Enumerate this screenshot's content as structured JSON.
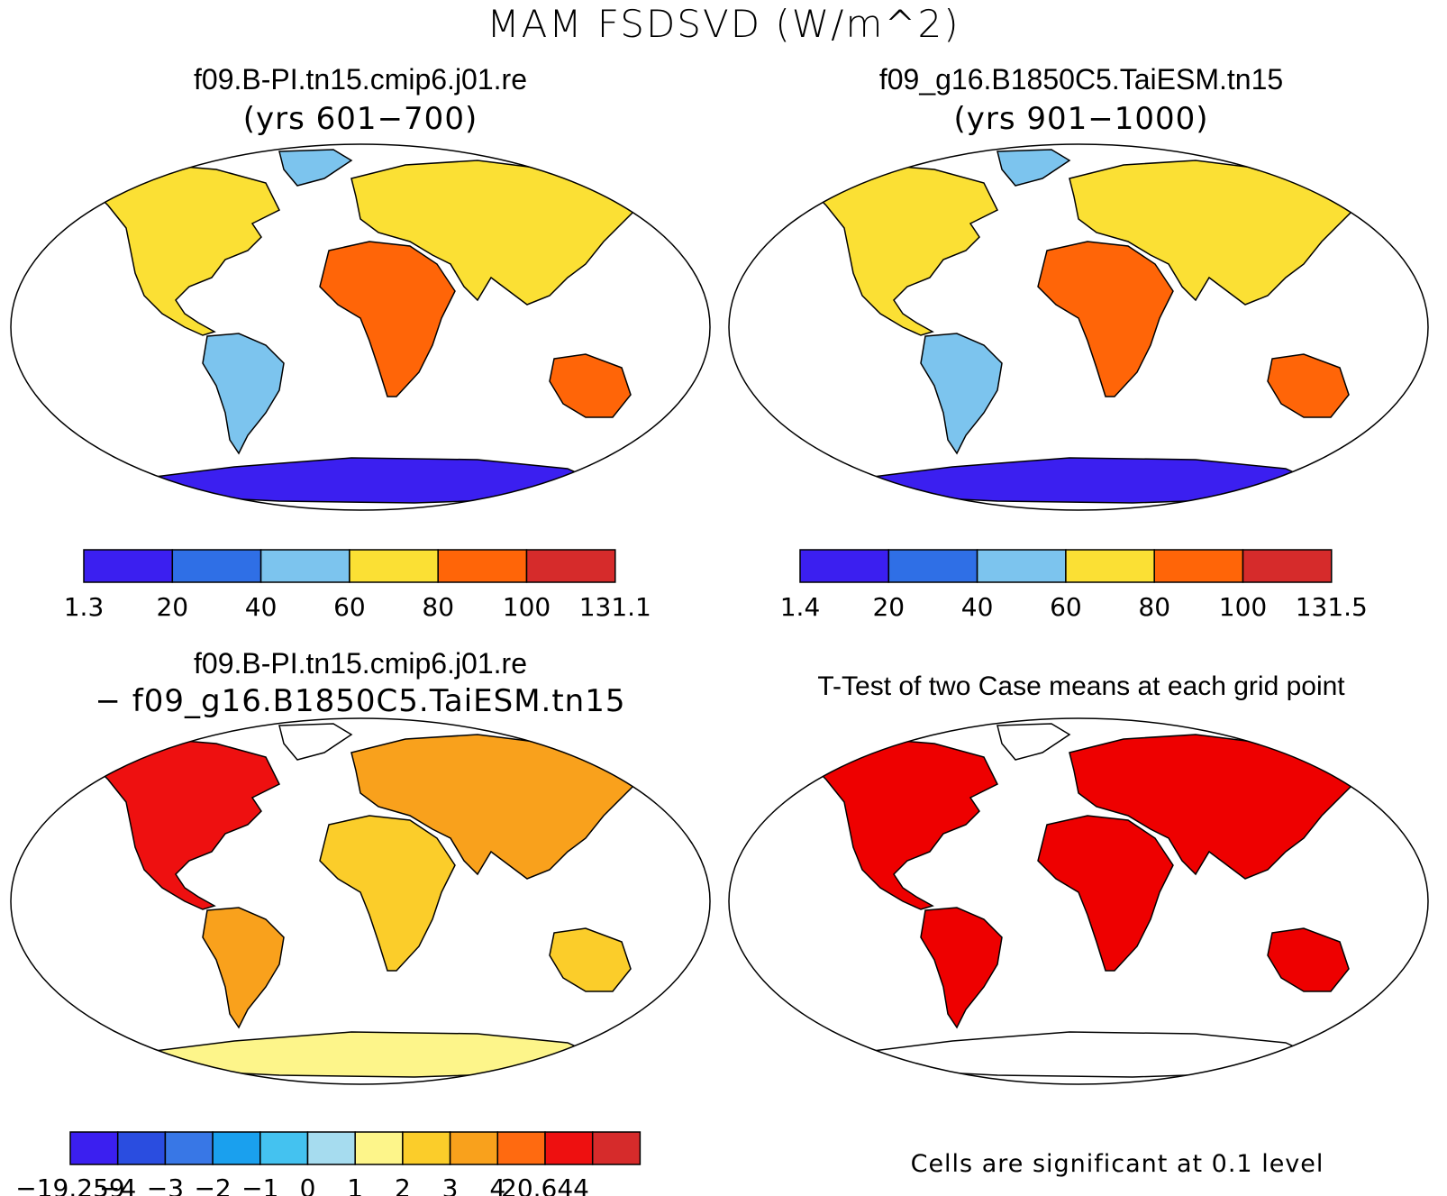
{
  "title": "MAM FSDSVD (W/m^2)",
  "panels": [
    {
      "id": "case1",
      "title": "f09.B-PI.tn15.cmip6.j01.re",
      "subtitle": "(yrs 601−700)",
      "colorbar": {
        "ticks": [
          "1.3",
          "20",
          "40",
          "60",
          "80",
          "100",
          "131.1"
        ],
        "colors": [
          "#3b1ff0",
          "#2f6fe6",
          "#7cc4ee",
          "#fbe034",
          "#ff6508",
          "#d62b2b"
        ]
      }
    },
    {
      "id": "case2",
      "title": "f09_g16.B1850C5.TaiESM.tn15",
      "subtitle": "(yrs 901−1000)",
      "colorbar": {
        "ticks": [
          "1.4",
          "20",
          "40",
          "60",
          "80",
          "100",
          "131.5"
        ],
        "colors": [
          "#3b1ff0",
          "#2f6fe6",
          "#7cc4ee",
          "#fbe034",
          "#ff6508",
          "#d62b2b"
        ]
      }
    },
    {
      "id": "diff",
      "title": "f09.B-PI.tn15.cmip6.j01.re",
      "subtitle": "− f09_g16.B1850C5.TaiESM.tn15",
      "colorbar": {
        "ticks": [
          "−19.259",
          "−4",
          "−3",
          "−2",
          "−1",
          "0",
          "1",
          "2",
          "3",
          "4",
          "20.644"
        ],
        "colors": [
          "#3b1ff0",
          "#2a4de0",
          "#3877e6",
          "#1aa0ee",
          "#44c2f0",
          "#a6dcef",
          "#fdf58a",
          "#fbcd2a",
          "#f9a11c",
          "#ff6a10",
          "#ee1010",
          "#d62b2b"
        ]
      }
    },
    {
      "id": "ttest",
      "title": "T-Test of two Case means at each grid point",
      "footnote": "Cells are significant at 0.1 level",
      "color": "#ee0000"
    }
  ]
}
